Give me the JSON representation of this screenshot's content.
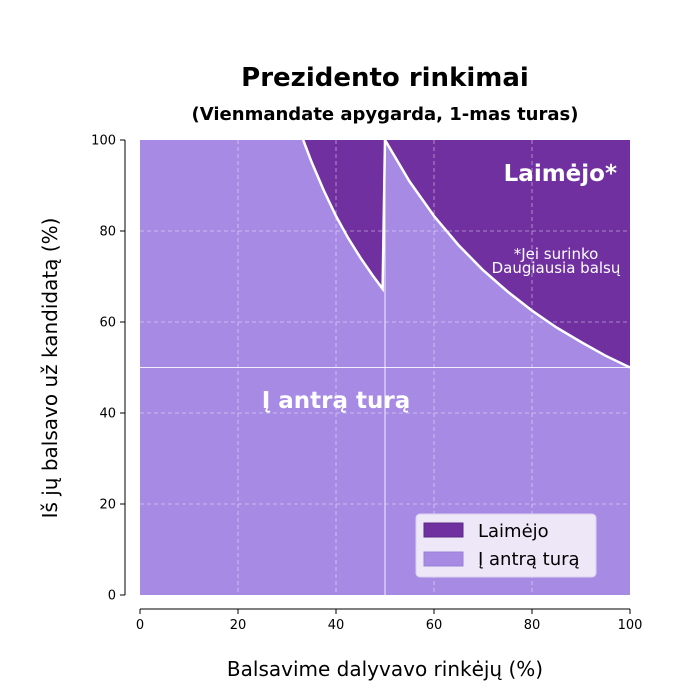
{
  "chart_data": {
    "type": "area",
    "title": "Prezidento rinkimai",
    "subtitle": "(Vienmandate apygarda, 1-mas turas)",
    "xlabel": "Balsavime dalyvavo rinkėjų (%)",
    "ylabel": "Iš jų balsavo už kandidatą (%)",
    "xlim": [
      0,
      100
    ],
    "ylim": [
      0,
      100
    ],
    "xticks": [
      0,
      20,
      40,
      60,
      80,
      100
    ],
    "yticks": [
      0,
      20,
      40,
      60,
      80,
      100
    ],
    "grid": true,
    "grid_style": "dashed",
    "legend_position": "lower-right",
    "colors": {
      "won": "#7030a0",
      "runoff": "#a68ae4",
      "boundary": "#ffffff"
    },
    "boundary": {
      "description_formula": "y = 100/(3x/100) for x < 50, y = 100/(2x/100) for x >= 50",
      "segments": [
        {
          "x": [
            33.3,
            35,
            37.5,
            40,
            42.5,
            45,
            47.5,
            49.5
          ],
          "y": [
            100,
            95.2,
            88.9,
            83.3,
            78.4,
            74.1,
            70.2,
            67.3
          ]
        },
        {
          "x": [
            50,
            55,
            60,
            65,
            70,
            75,
            80,
            85,
            90,
            95,
            100
          ],
          "y": [
            100,
            90.9,
            83.3,
            76.9,
            71.4,
            66.7,
            62.5,
            58.8,
            55.6,
            52.6,
            50
          ]
        }
      ]
    },
    "reference_lines": {
      "x": 50,
      "y": 50
    },
    "series": [
      {
        "name": "Laimėjo",
        "color": "#7030a0"
      },
      {
        "name": "Į antrą turą",
        "color": "#a68ae4"
      }
    ],
    "annotations": {
      "won_label": "Laimėjo*",
      "note_line1": "*Jei surinko",
      "note_line2": "Daugiausia balsų",
      "runoff_label": "Į antrą turą"
    }
  }
}
